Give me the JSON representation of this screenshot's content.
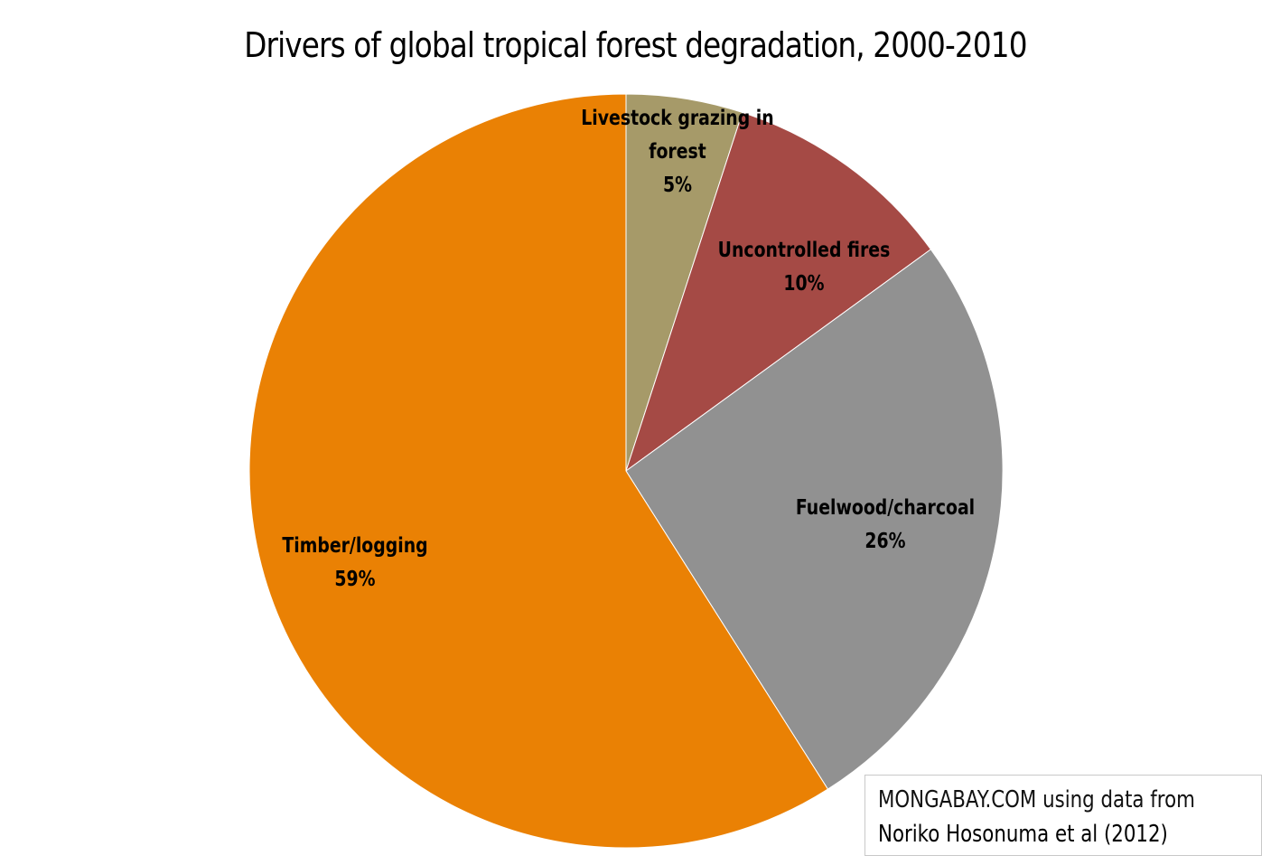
{
  "chart_data": {
    "type": "pie",
    "title": "Drivers of global tropical forest degradation, 2000-2010",
    "categories": [
      "Livestock grazing in forest",
      "Uncontrolled fires",
      "Fuelwood/charcoal",
      "Timber/logging"
    ],
    "values": [
      5,
      10,
      26,
      59
    ],
    "unit": "%",
    "colors": [
      "#A69A69",
      "#A54A45",
      "#919191",
      "#EA8104"
    ],
    "labels": [
      {
        "line1": "Livestock grazing in",
        "line2": "forest",
        "pct": "5%"
      },
      {
        "line1": "Uncontrolled fires",
        "pct": "10%"
      },
      {
        "line1": "Fuelwood/charcoal",
        "pct": "26%"
      },
      {
        "line1": "Timber/logging",
        "pct": "59%"
      }
    ],
    "start_angle": "12 o'clock, clockwise",
    "legend": "none (data labels on slices)"
  },
  "source": {
    "line1": "MONGABAY.COM using data from",
    "line2": "Noriko Hosonuma et al (2012)"
  }
}
